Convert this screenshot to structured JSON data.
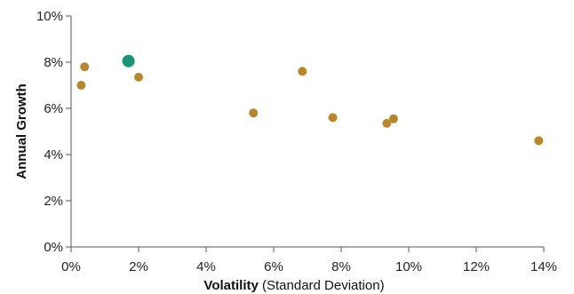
{
  "chart_data": {
    "type": "scatter",
    "title": "",
    "xlabel_bold": "Volatility",
    "xlabel_rest": " (Standard Deviation)",
    "ylabel": "Annual Growth",
    "xlim": [
      0,
      14
    ],
    "ylim": [
      0,
      10
    ],
    "x_ticks": [
      0,
      2,
      4,
      6,
      8,
      10,
      12,
      14
    ],
    "y_ticks": [
      0,
      2,
      4,
      6,
      8,
      10
    ],
    "x_tick_labels": [
      "0%",
      "2%",
      "4%",
      "6%",
      "8%",
      "10%",
      "12%",
      "14%"
    ],
    "y_tick_labels": [
      "0%",
      "2%",
      "4%",
      "6%",
      "8%",
      "10%"
    ],
    "grid": false,
    "colors": {
      "default_point": "#B8862E",
      "highlight_point": "#1A9477"
    },
    "points": [
      {
        "x": 0.3,
        "y": 7.0,
        "highlight": false
      },
      {
        "x": 0.4,
        "y": 7.8,
        "highlight": false
      },
      {
        "x": 1.7,
        "y": 8.05,
        "highlight": true
      },
      {
        "x": 2.0,
        "y": 7.35,
        "highlight": false
      },
      {
        "x": 5.4,
        "y": 5.8,
        "highlight": false
      },
      {
        "x": 6.85,
        "y": 7.6,
        "highlight": false
      },
      {
        "x": 7.75,
        "y": 5.6,
        "highlight": false
      },
      {
        "x": 9.35,
        "y": 5.35,
        "highlight": false
      },
      {
        "x": 9.55,
        "y": 5.55,
        "highlight": false
      },
      {
        "x": 13.85,
        "y": 4.6,
        "highlight": false
      }
    ]
  }
}
